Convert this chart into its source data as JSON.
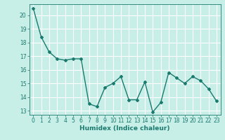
{
  "x": [
    0,
    1,
    2,
    3,
    4,
    5,
    6,
    7,
    8,
    9,
    10,
    11,
    12,
    13,
    14,
    15,
    16,
    17,
    18,
    19,
    20,
    21,
    22,
    23
  ],
  "y": [
    20.5,
    18.4,
    17.3,
    16.8,
    16.7,
    16.8,
    16.8,
    13.5,
    13.3,
    14.7,
    15.0,
    15.5,
    13.8,
    13.8,
    15.1,
    12.9,
    13.6,
    15.8,
    15.4,
    15.0,
    15.5,
    15.2,
    14.6,
    13.7
  ],
  "line_color": "#1a7a6e",
  "marker": "D",
  "marker_size": 2.0,
  "bg_color": "#c8eee8",
  "grid_color": "#ffffff",
  "xlabel": "Humidex (Indice chaleur)",
  "ylim": [
    12.7,
    20.8
  ],
  "xlim": [
    -0.5,
    23.5
  ],
  "yticks": [
    13,
    14,
    15,
    16,
    17,
    18,
    19,
    20
  ],
  "xticks": [
    0,
    1,
    2,
    3,
    4,
    5,
    6,
    7,
    8,
    9,
    10,
    11,
    12,
    13,
    14,
    15,
    16,
    17,
    18,
    19,
    20,
    21,
    22,
    23
  ],
  "tick_label_fontsize": 5.5,
  "xlabel_fontsize": 6.5,
  "line_width": 1.0
}
